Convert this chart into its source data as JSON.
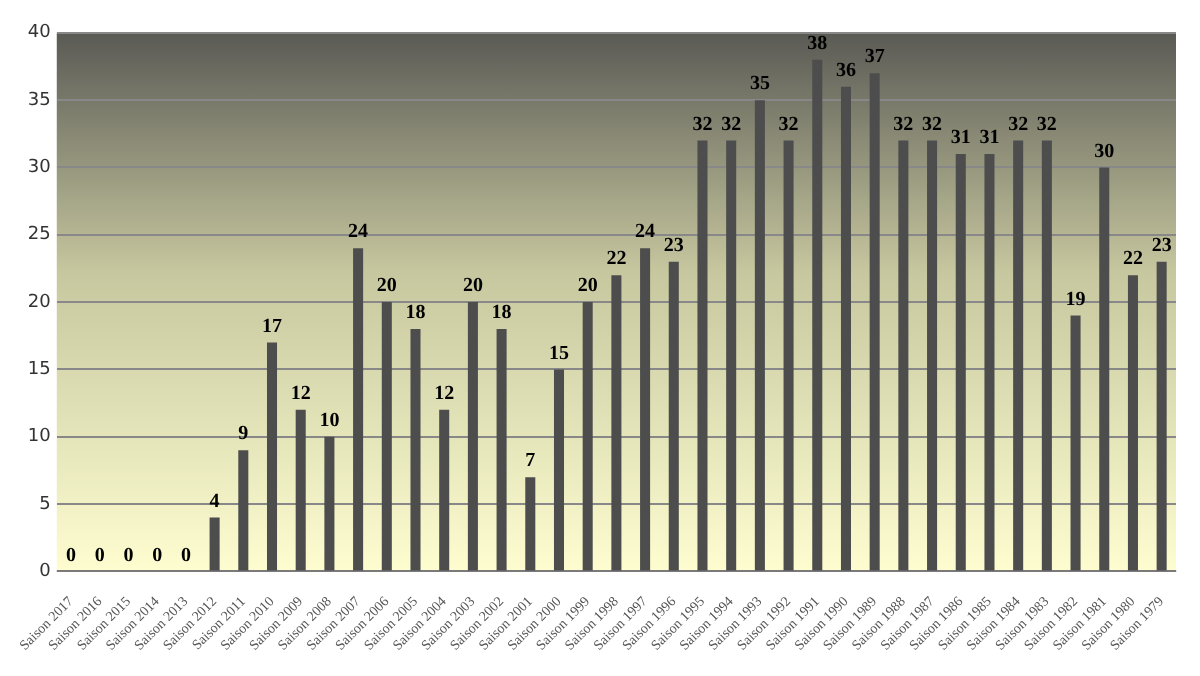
{
  "chart_data": {
    "type": "bar",
    "categories": [
      "Saison 2017",
      "Saison 2016",
      "Saison 2015",
      "Saison 2014",
      "Saison 2013",
      "Saison 2012",
      "Saison 2011",
      "Saison 2010",
      "Saison 2009",
      "Saison 2008",
      "Saison 2007",
      "Saison 2006",
      "Saison 2005",
      "Saison 2004",
      "Saison 2003",
      "Saison 2002",
      "Saison 2001",
      "Saison 2000",
      "Saison 1999",
      "Saison 1998",
      "Saison 1997",
      "Saison 1996",
      "Saison 1995",
      "Saison 1994",
      "Saison 1993",
      "Saison 1992",
      "Saison 1991",
      "Saison 1990",
      "Saison 1989",
      "Saison 1988",
      "Saison 1987",
      "Saison 1986",
      "Saison 1985",
      "Saison 1984",
      "Saison 1983",
      "Saison 1982",
      "Saison 1981",
      "Saison 1980",
      "Saison 1979"
    ],
    "values": [
      0,
      0,
      0,
      0,
      0,
      4,
      9,
      17,
      12,
      10,
      24,
      20,
      18,
      12,
      20,
      18,
      7,
      15,
      20,
      22,
      24,
      23,
      32,
      32,
      35,
      32,
      38,
      36,
      37,
      32,
      32,
      31,
      31,
      32,
      32,
      19,
      30,
      22,
      23
    ],
    "color": "#4d4d4d",
    "ylim": [
      0,
      40
    ],
    "yticks": [
      0,
      5,
      10,
      15,
      20,
      25,
      30,
      35,
      40
    ],
    "grid": "y",
    "data_labels": true
  }
}
